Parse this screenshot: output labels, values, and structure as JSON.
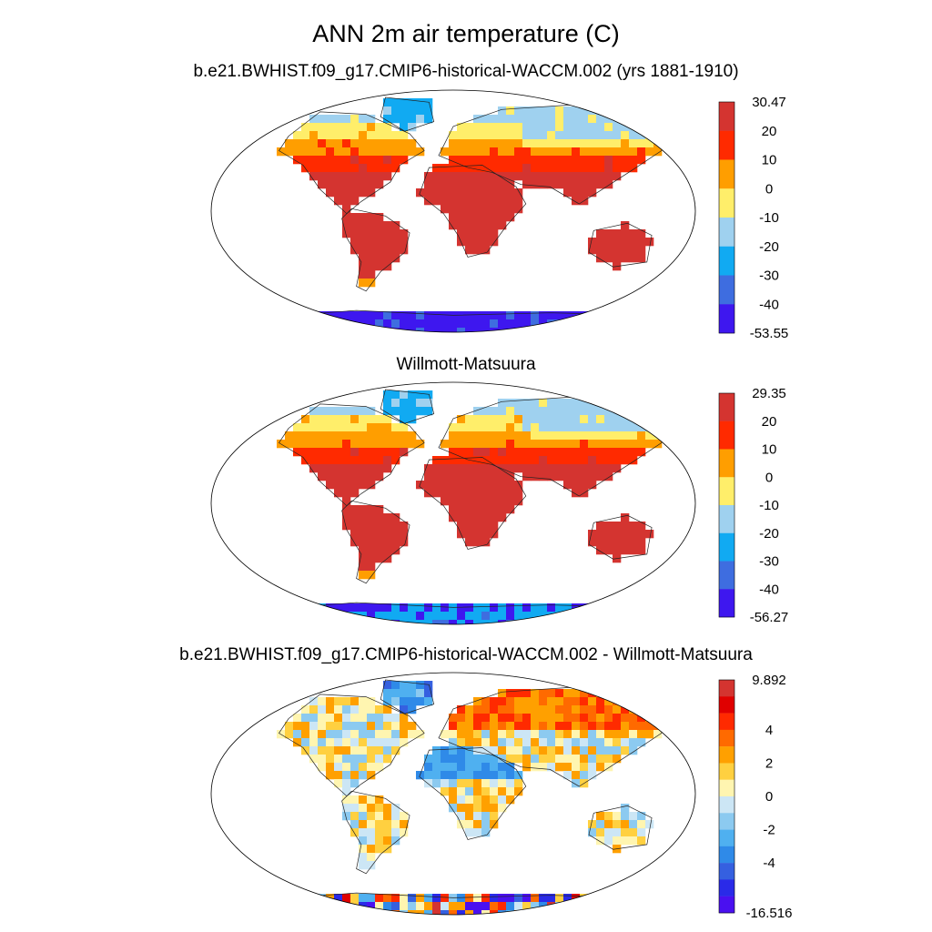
{
  "title": "ANN 2m air temperature (C)",
  "chart_data": [
    {
      "type": "heatmap",
      "title": "b.e21.BWHIST.f09_g17.CMIP6-historical-WACCM.002 (yrs 1881-1910)",
      "projection": "Robinson",
      "variable": "ANN 2m air temperature",
      "units": "C",
      "colorbar": {
        "max": "30.47",
        "min": "-53.55",
        "levels": [
          "20",
          "10",
          "0",
          "-10",
          "-20",
          "-30",
          "-40"
        ],
        "colors": [
          "#d43430",
          "#ff2a00",
          "#ff9e00",
          "#ffee6a",
          "#9fd1ef",
          "#11aaf2",
          "#3e6de0",
          "#3e17ef"
        ]
      }
    },
    {
      "type": "heatmap",
      "title": "Willmott-Matsuura",
      "projection": "Robinson",
      "variable": "ANN 2m air temperature",
      "units": "C",
      "colorbar": {
        "max": "29.35",
        "min": "-56.27",
        "levels": [
          "20",
          "10",
          "0",
          "-10",
          "-20",
          "-30",
          "-40"
        ],
        "colors": [
          "#d43430",
          "#ff2a00",
          "#ff9e00",
          "#ffee6a",
          "#9fd1ef",
          "#11aaf2",
          "#3e6de0",
          "#3e17ef"
        ]
      }
    },
    {
      "type": "heatmap",
      "title": "b.e21.BWHIST.f09_g17.CMIP6-historical-WACCM.002 - Willmott-Matsuura",
      "projection": "Robinson",
      "variable": "ANN 2m air temperature difference",
      "units": "C",
      "colorbar": {
        "max": "9.892",
        "min": "-16.516",
        "levels": [
          "",
          "",
          "4",
          "",
          "2",
          "",
          "0",
          "",
          "-2",
          "",
          "-4",
          "",
          ""
        ],
        "colors": [
          "#d43430",
          "#e00000",
          "#ff2a00",
          "#ff6a00",
          "#ffa000",
          "#ffd040",
          "#fff5b0",
          "#cce6f5",
          "#8ccaf0",
          "#4fb0f0",
          "#2f8ae8",
          "#3560e0",
          "#2a2ae8",
          "#4a10f0"
        ]
      }
    }
  ]
}
